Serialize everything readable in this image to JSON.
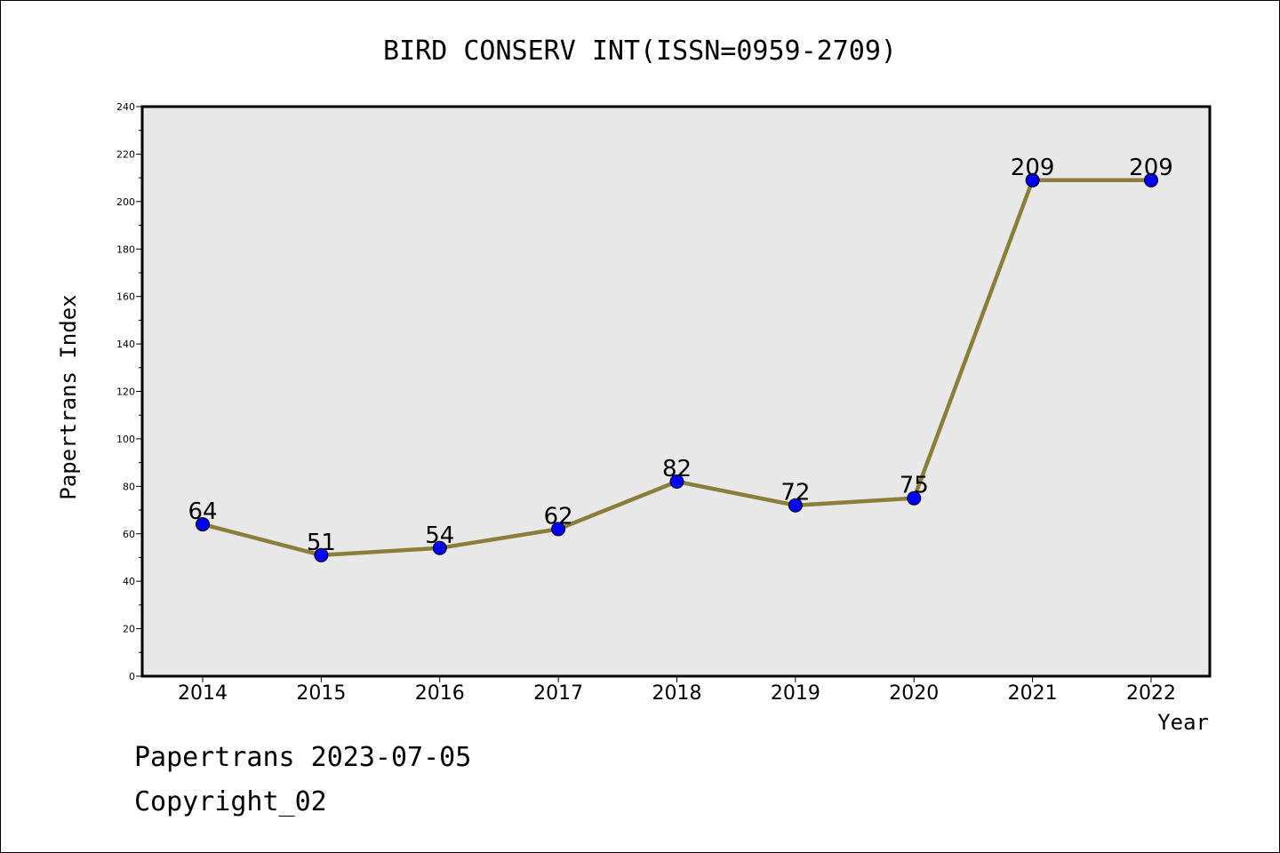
{
  "chart_data": {
    "type": "line",
    "title": "BIRD CONSERV INT(ISSN=0959-2709)",
    "xlabel": "Year",
    "ylabel": "Papertrans Index",
    "categories": [
      "2014",
      "2015",
      "2016",
      "2017",
      "2018",
      "2019",
      "2020",
      "2021",
      "2022"
    ],
    "values": [
      64,
      51,
      54,
      62,
      82,
      72,
      75,
      209,
      209
    ],
    "ylim": [
      0,
      240
    ],
    "yticks": [
      0,
      20,
      40,
      60,
      80,
      100,
      120,
      140,
      160,
      180,
      200,
      220,
      240
    ],
    "grid": false,
    "line_color": "#8b7d3a",
    "marker_color": "#0000ff",
    "plot_background": "#e8e8e8"
  },
  "footer": {
    "line1": "Papertrans 2023-07-05",
    "line2": "Copyright_02"
  }
}
